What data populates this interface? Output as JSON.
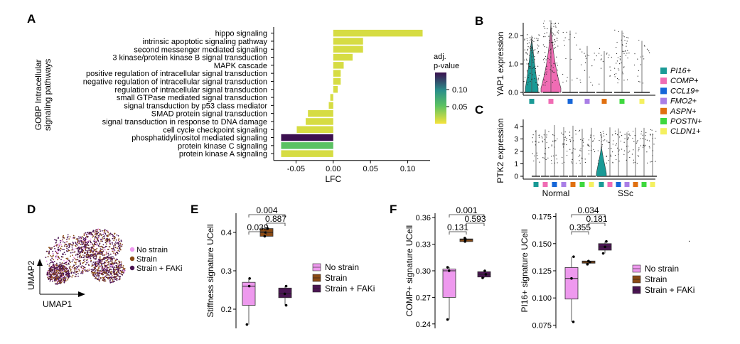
{
  "panels": {
    "A": "A",
    "B": "B",
    "C": "C",
    "D": "D",
    "E": "E",
    "F": "F"
  },
  "chart_data": [
    {
      "id": "A",
      "type": "bar",
      "orientation": "horizontal",
      "ylabel": "GOBP Intracellular signaling pathways",
      "xlabel": "LFC",
      "xlim": [
        -0.08,
        0.13
      ],
      "xticks": [
        -0.05,
        0.0,
        0.05,
        0.1
      ],
      "xtick_labels": [
        "-0.05",
        "0.00",
        "0.05",
        "0.10"
      ],
      "categories": [
        "hippo signaling",
        "intrinsic apoptotic signaling pathway",
        "second messenger mediated signaling",
        "3 kinase/protein kinase B signal transduction",
        "MAPK cascade",
        "positive regulation of intracellular signal transduction",
        "negative regulation of intracellular signal transduction",
        "regulation of intracellular signal transduction",
        "small GTPase mediated signal transduction",
        "signal transduction by p53 class mediator",
        "SMAD protein signal transduction",
        "signal transduction in response to DNA damage",
        "cell cycle checkpoint signaling",
        "phosphatidylinositol mediated signaling",
        "protein kinase C signaling",
        "protein kinase A signaling"
      ],
      "values": [
        0.12,
        0.04,
        0.04,
        0.026,
        0.014,
        0.01,
        0.01,
        0.006,
        -0.004,
        -0.006,
        -0.034,
        -0.037,
        -0.049,
        -0.07,
        -0.07,
        -0.07
      ],
      "padj": [
        0.02,
        0.02,
        0.02,
        0.02,
        0.02,
        0.02,
        0.02,
        0.02,
        0.02,
        0.02,
        0.02,
        0.02,
        0.02,
        0.15,
        0.06,
        0.02
      ],
      "legend": {
        "title_1": "adj.",
        "title_2": "p-value",
        "ticks": [
          "0.10",
          "0.05"
        ],
        "range": [
          0.01,
          0.15
        ]
      },
      "colors": {
        "high": "#3b0f4f",
        "mid": "#2a8f8a",
        "low": "#f2e93a",
        "bar_yellow": "#f5e33b"
      }
    },
    {
      "id": "B",
      "type": "violin",
      "ylabel": "YAP1 expression",
      "yticks": [
        "0.0",
        "1.0",
        "2.0"
      ],
      "groups": [
        "PI16+",
        "COMP+",
        "CCL19+",
        "FMO2+",
        "ASPN+",
        "POSTN+",
        "CLDN1+"
      ]
    },
    {
      "id": "C",
      "type": "violin",
      "ylabel": "PTK2 expression",
      "yticks": [
        "0",
        "1",
        "2",
        "3",
        "4"
      ],
      "xlabels": [
        "Normal",
        "SSc"
      ]
    },
    {
      "id": "D",
      "type": "scatter",
      "xlabel": "UMAP1",
      "ylabel": "UMAP2",
      "legend": [
        "No strain",
        "Strain",
        "Strain + FAKi"
      ]
    },
    {
      "id": "E",
      "type": "box",
      "ylabel": "Stiffness signature UCell",
      "ylim": [
        0.15,
        0.45
      ],
      "yticks": [
        0.2,
        0.3,
        0.4
      ],
      "ytick_labels": [
        "0.2",
        "0.3",
        "0.4"
      ],
      "groups": [
        "No strain",
        "Strain",
        "Strain + FAKi"
      ],
      "boxes": [
        {
          "min": 0.16,
          "q1": 0.21,
          "median": 0.26,
          "q3": 0.27,
          "max": 0.28,
          "points": [
            0.16,
            0.26,
            0.28
          ]
        },
        {
          "min": 0.39,
          "q1": 0.39,
          "median": 0.4,
          "q3": 0.41,
          "max": 0.41,
          "points": [
            0.39,
            0.4,
            0.41
          ]
        },
        {
          "min": 0.21,
          "q1": 0.23,
          "median": 0.24,
          "q3": 0.255,
          "max": 0.26,
          "points": [
            0.21,
            0.24,
            0.26
          ]
        }
      ],
      "pvalues": [
        {
          "pair": [
            1,
            3
          ],
          "label": "0.004"
        },
        {
          "pair": [
            2,
            3
          ],
          "label": "0.887"
        },
        {
          "pair": [
            1,
            2
          ],
          "label": "0.039"
        }
      ],
      "legend": [
        "No strain",
        "Strain",
        "Strain + FAKi"
      ]
    },
    {
      "id": "F1",
      "type": "box",
      "ylabel": "COMP+ signature UCell",
      "ylim": [
        0.235,
        0.365
      ],
      "yticks": [
        0.24,
        0.27,
        0.3,
        0.33,
        0.36
      ],
      "ytick_labels": [
        "0.24",
        "0.27",
        "0.30",
        "0.33",
        "0.36"
      ],
      "groups": [
        "No strain",
        "Strain",
        "Strain + FAKi"
      ],
      "boxes": [
        {
          "min": 0.245,
          "q1": 0.27,
          "median": 0.3,
          "q3": 0.302,
          "max": 0.304,
          "points": [
            0.245,
            0.3,
            0.304
          ]
        },
        {
          "min": 0.333,
          "q1": 0.333,
          "median": 0.335,
          "q3": 0.336,
          "max": 0.337,
          "points": [
            0.333,
            0.335,
            0.337
          ]
        },
        {
          "min": 0.292,
          "q1": 0.293,
          "median": 0.296,
          "q3": 0.299,
          "max": 0.3,
          "points": [
            0.292,
            0.296,
            0.3
          ]
        }
      ],
      "pvalues": [
        {
          "pair": [
            1,
            3
          ],
          "label": "0.001"
        },
        {
          "pair": [
            2,
            3
          ],
          "label": "0.593"
        },
        {
          "pair": [
            1,
            2
          ],
          "label": "0.131"
        }
      ]
    },
    {
      "id": "F2",
      "type": "box",
      "ylabel": "PI16+ signature UCell",
      "ylim": [
        0.072,
        0.178
      ],
      "yticks": [
        0.075,
        0.1,
        0.125,
        0.15,
        0.175
      ],
      "ytick_labels": [
        "0.075",
        "0.100",
        "0.125",
        "0.150",
        "0.175"
      ],
      "groups": [
        "No strain",
        "Strain",
        "Strain + FAKi"
      ],
      "boxes": [
        {
          "min": 0.078,
          "q1": 0.099,
          "median": 0.118,
          "q3": 0.128,
          "max": 0.138,
          "points": [
            0.078,
            0.118,
            0.138
          ]
        },
        {
          "min": 0.131,
          "q1": 0.132,
          "median": 0.133,
          "q3": 0.134,
          "max": 0.134,
          "points": [
            0.131,
            0.133,
            0.134
          ]
        },
        {
          "min": 0.141,
          "q1": 0.144,
          "median": 0.147,
          "q3": 0.15,
          "max": 0.152,
          "points": [
            0.141,
            0.147,
            0.152
          ]
        }
      ],
      "pvalues": [
        {
          "pair": [
            1,
            3
          ],
          "label": "0.034"
        },
        {
          "pair": [
            2,
            3
          ],
          "label": "0.181"
        },
        {
          "pair": [
            1,
            2
          ],
          "label": "0.355"
        }
      ],
      "legend": [
        "No strain",
        "Strain",
        "Strain + FAKi"
      ]
    }
  ],
  "group_colors": {
    "No strain": "#ee99ee",
    "Strain": "#8a4a14",
    "Strain + FAKi": "#4a1452",
    "PI16+": "#1a9a96",
    "COMP+": "#f06cb4",
    "CCL19+": "#1666d8",
    "FMO2+": "#a97ee6",
    "ASPN+": "#e07010",
    "POSTN+": "#3ed83e",
    "CLDN1+": "#f4f060"
  }
}
